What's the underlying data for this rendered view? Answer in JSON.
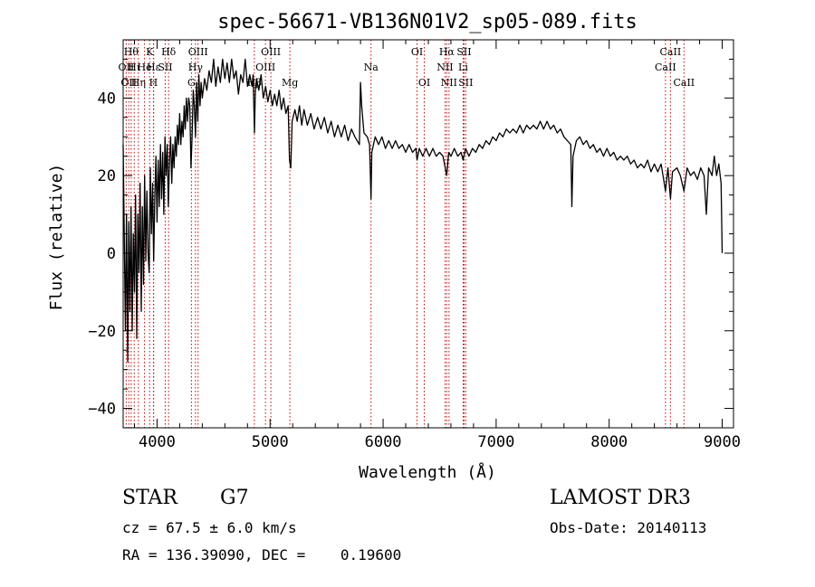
{
  "chart_data": {
    "type": "line",
    "title": "spec-56671-VB136N01V2_sp05-089.fits",
    "xlabel": "Wavelength (Å)",
    "ylabel": "Flux (relative)",
    "xlim": [
      3700,
      9100
    ],
    "ylim": [
      -45,
      55
    ],
    "xticks": [
      4000,
      5000,
      6000,
      7000,
      8000,
      9000
    ],
    "yticks": [
      -40,
      -20,
      0,
      20,
      40
    ],
    "series": [
      {
        "name": "spectrum",
        "points": [
          [
            3700,
            28
          ],
          [
            3710,
            5
          ],
          [
            3720,
            -20
          ],
          [
            3730,
            10
          ],
          [
            3740,
            -28
          ],
          [
            3750,
            8
          ],
          [
            3760,
            -15
          ],
          [
            3770,
            12
          ],
          [
            3780,
            -20
          ],
          [
            3790,
            5
          ],
          [
            3800,
            -10
          ],
          [
            3810,
            15
          ],
          [
            3820,
            -22
          ],
          [
            3830,
            10
          ],
          [
            3840,
            -5
          ],
          [
            3850,
            18
          ],
          [
            3860,
            -15
          ],
          [
            3870,
            12
          ],
          [
            3880,
            -8
          ],
          [
            3890,
            20
          ],
          [
            3900,
            -2
          ],
          [
            3910,
            16
          ],
          [
            3920,
            0
          ],
          [
            3930,
            -5
          ],
          [
            3940,
            22
          ],
          [
            3950,
            5
          ],
          [
            3960,
            18
          ],
          [
            3970,
            -2
          ],
          [
            3980,
            14
          ],
          [
            3990,
            25
          ],
          [
            4000,
            8
          ],
          [
            4010,
            24
          ],
          [
            4020,
            12
          ],
          [
            4030,
            28
          ],
          [
            4040,
            14
          ],
          [
            4050,
            26
          ],
          [
            4060,
            10
          ],
          [
            4070,
            30
          ],
          [
            4080,
            20
          ],
          [
            4090,
            28
          ],
          [
            4100,
            12
          ],
          [
            4110,
            24
          ],
          [
            4120,
            30
          ],
          [
            4130,
            18
          ],
          [
            4140,
            28
          ],
          [
            4150,
            22
          ],
          [
            4160,
            30
          ],
          [
            4170,
            25
          ],
          [
            4180,
            33
          ],
          [
            4190,
            28
          ],
          [
            4200,
            36
          ],
          [
            4210,
            28
          ],
          [
            4220,
            34
          ],
          [
            4230,
            30
          ],
          [
            4240,
            38
          ],
          [
            4250,
            32
          ],
          [
            4260,
            40
          ],
          [
            4270,
            34
          ],
          [
            4280,
            40
          ],
          [
            4290,
            38
          ],
          [
            4300,
            22
          ],
          [
            4310,
            30
          ],
          [
            4320,
            42
          ],
          [
            4330,
            38
          ],
          [
            4340,
            30
          ],
          [
            4350,
            44
          ],
          [
            4360,
            34
          ],
          [
            4370,
            46
          ],
          [
            4380,
            38
          ],
          [
            4390,
            44
          ],
          [
            4400,
            40
          ],
          [
            4420,
            45
          ],
          [
            4440,
            42
          ],
          [
            4460,
            47
          ],
          [
            4480,
            44
          ],
          [
            4500,
            50
          ],
          [
            4520,
            43
          ],
          [
            4540,
            48
          ],
          [
            4560,
            44
          ],
          [
            4580,
            50
          ],
          [
            4600,
            45
          ],
          [
            4620,
            49
          ],
          [
            4640,
            44
          ],
          [
            4660,
            50
          ],
          [
            4680,
            45
          ],
          [
            4700,
            47
          ],
          [
            4720,
            41
          ],
          [
            4740,
            46
          ],
          [
            4760,
            44
          ],
          [
            4780,
            50
          ],
          [
            4800,
            43
          ],
          [
            4820,
            46
          ],
          [
            4840,
            43
          ],
          [
            4850,
            46
          ],
          [
            4862,
            31
          ],
          [
            4870,
            42
          ],
          [
            4880,
            45
          ],
          [
            4900,
            42
          ],
          [
            4920,
            46
          ],
          [
            4940,
            40
          ],
          [
            4960,
            43
          ],
          [
            4980,
            39
          ],
          [
            5000,
            42
          ],
          [
            5020,
            38
          ],
          [
            5040,
            41
          ],
          [
            5060,
            38
          ],
          [
            5080,
            42
          ],
          [
            5100,
            37
          ],
          [
            5120,
            40
          ],
          [
            5140,
            36
          ],
          [
            5160,
            38
          ],
          [
            5172,
            24
          ],
          [
            5183,
            22
          ],
          [
            5195,
            34
          ],
          [
            5220,
            37
          ],
          [
            5240,
            34
          ],
          [
            5260,
            38
          ],
          [
            5280,
            33
          ],
          [
            5300,
            37
          ],
          [
            5330,
            33
          ],
          [
            5360,
            36
          ],
          [
            5390,
            32
          ],
          [
            5420,
            35
          ],
          [
            5450,
            32
          ],
          [
            5480,
            35
          ],
          [
            5510,
            31
          ],
          [
            5540,
            34
          ],
          [
            5570,
            30
          ],
          [
            5600,
            33
          ],
          [
            5630,
            30
          ],
          [
            5660,
            33
          ],
          [
            5690,
            29
          ],
          [
            5720,
            32
          ],
          [
            5750,
            30
          ],
          [
            5790,
            28
          ],
          [
            5800,
            44
          ],
          [
            5810,
            38
          ],
          [
            5830,
            31
          ],
          [
            5860,
            30
          ],
          [
            5880,
            28
          ],
          [
            5893,
            14
          ],
          [
            5900,
            26
          ],
          [
            5930,
            30
          ],
          [
            5960,
            28
          ],
          [
            5990,
            30
          ],
          [
            6020,
            27
          ],
          [
            6050,
            29
          ],
          [
            6080,
            27
          ],
          [
            6110,
            29
          ],
          [
            6140,
            27
          ],
          [
            6170,
            28
          ],
          [
            6200,
            26
          ],
          [
            6230,
            28
          ],
          [
            6260,
            26
          ],
          [
            6290,
            27
          ],
          [
            6300,
            24
          ],
          [
            6320,
            27
          ],
          [
            6350,
            25
          ],
          [
            6380,
            27
          ],
          [
            6410,
            25
          ],
          [
            6440,
            27
          ],
          [
            6470,
            25
          ],
          [
            6500,
            26
          ],
          [
            6530,
            25
          ],
          [
            6563,
            20
          ],
          [
            6580,
            26
          ],
          [
            6600,
            25
          ],
          [
            6630,
            27
          ],
          [
            6660,
            25
          ],
          [
            6690,
            26
          ],
          [
            6708,
            24
          ],
          [
            6730,
            27
          ],
          [
            6760,
            25
          ],
          [
            6790,
            27
          ],
          [
            6820,
            26
          ],
          [
            6850,
            28
          ],
          [
            6880,
            27
          ],
          [
            6910,
            29
          ],
          [
            6940,
            28
          ],
          [
            6970,
            30
          ],
          [
            7000,
            29
          ],
          [
            7030,
            31
          ],
          [
            7060,
            30
          ],
          [
            7090,
            32
          ],
          [
            7120,
            31
          ],
          [
            7150,
            32
          ],
          [
            7180,
            31
          ],
          [
            7210,
            33
          ],
          [
            7240,
            31
          ],
          [
            7270,
            33
          ],
          [
            7300,
            32
          ],
          [
            7330,
            33
          ],
          [
            7360,
            32
          ],
          [
            7390,
            34
          ],
          [
            7420,
            32
          ],
          [
            7450,
            34
          ],
          [
            7480,
            32
          ],
          [
            7510,
            33
          ],
          [
            7540,
            31
          ],
          [
            7570,
            32
          ],
          [
            7600,
            30
          ],
          [
            7630,
            29
          ],
          [
            7660,
            28
          ],
          [
            7670,
            12
          ],
          [
            7680,
            25
          ],
          [
            7710,
            29
          ],
          [
            7740,
            30
          ],
          [
            7770,
            28
          ],
          [
            7800,
            29
          ],
          [
            7830,
            27
          ],
          [
            7860,
            28
          ],
          [
            7890,
            26
          ],
          [
            7920,
            27
          ],
          [
            7950,
            25
          ],
          [
            7980,
            27
          ],
          [
            8010,
            25
          ],
          [
            8040,
            26
          ],
          [
            8070,
            24
          ],
          [
            8100,
            25
          ],
          [
            8130,
            24
          ],
          [
            8160,
            25
          ],
          [
            8190,
            23
          ],
          [
            8220,
            24
          ],
          [
            8250,
            22
          ],
          [
            8280,
            23
          ],
          [
            8310,
            22
          ],
          [
            8340,
            24
          ],
          [
            8370,
            21
          ],
          [
            8400,
            23
          ],
          [
            8430,
            21
          ],
          [
            8460,
            23
          ],
          [
            8498,
            16
          ],
          [
            8520,
            22
          ],
          [
            8542,
            14
          ],
          [
            8560,
            21
          ],
          [
            8600,
            22
          ],
          [
            8630,
            20
          ],
          [
            8662,
            16
          ],
          [
            8690,
            22
          ],
          [
            8720,
            20
          ],
          [
            8750,
            21
          ],
          [
            8780,
            19
          ],
          [
            8810,
            22
          ],
          [
            8840,
            20
          ],
          [
            8860,
            10
          ],
          [
            8880,
            22
          ],
          [
            8910,
            20
          ],
          [
            8930,
            25
          ],
          [
            8950,
            20
          ],
          [
            8970,
            23
          ],
          [
            8990,
            18
          ],
          [
            9000,
            0
          ]
        ]
      }
    ],
    "lines": [
      {
        "wave": 3727,
        "label": "OII",
        "row": 2
      },
      {
        "wave": 3750,
        "label": "OII",
        "row": 3
      },
      {
        "wave": 3771,
        "label": "Hθ",
        "row": 1
      },
      {
        "wave": 3798,
        "label": "Hι",
        "row": 2
      },
      {
        "wave": 3835,
        "label": "Hη",
        "row": 3
      },
      {
        "wave": 3889,
        "label": "He",
        "row": 2
      },
      {
        "wave": 3934,
        "label": "K",
        "row": 1
      },
      {
        "wave": 3968,
        "label": "H",
        "row": 3
      },
      {
        "wave": 3970,
        "label": "Hε",
        "row": 2
      },
      {
        "wave": 4072,
        "label": "SII",
        "row": 2
      },
      {
        "wave": 4102,
        "label": "Hδ",
        "row": 1
      },
      {
        "wave": 4304,
        "label": "G",
        "row": 3
      },
      {
        "wave": 4340,
        "label": "Hγ",
        "row": 2
      },
      {
        "wave": 4363,
        "label": "OIII",
        "row": 1
      },
      {
        "wave": 4861,
        "label": "Hβ",
        "row": 3
      },
      {
        "wave": 4959,
        "label": "OIII",
        "row": 2
      },
      {
        "wave": 5007,
        "label": "OIII",
        "row": 1
      },
      {
        "wave": 5175,
        "label": "Mg",
        "row": 3
      },
      {
        "wave": 5893,
        "label": "Na",
        "row": 2
      },
      {
        "wave": 6300,
        "label": "OI",
        "row": 1
      },
      {
        "wave": 6364,
        "label": "OI",
        "row": 3
      },
      {
        "wave": 6548,
        "label": "NII",
        "row": 2
      },
      {
        "wave": 6563,
        "label": "Hα",
        "row": 1
      },
      {
        "wave": 6583,
        "label": "NII",
        "row": 3
      },
      {
        "wave": 6708,
        "label": "Li",
        "row": 2
      },
      {
        "wave": 6716,
        "label": "SII",
        "row": 1
      },
      {
        "wave": 6731,
        "label": "SII",
        "row": 3
      },
      {
        "wave": 8498,
        "label": "CaII",
        "row": 2
      },
      {
        "wave": 8542,
        "label": "CaII",
        "row": 1
      },
      {
        "wave": 8662,
        "label": "CaII",
        "row": 3
      }
    ]
  },
  "info": {
    "object_class": "STAR",
    "subclass": "G7",
    "survey": "LAMOST DR3",
    "redshift": "cz = 67.5 ± 6.0 km/s",
    "obs_date": "Obs-Date: 20140113",
    "coords": "RA = 136.39090, DEC =    0.19600"
  },
  "colors": {
    "spectrum": "#000000",
    "line_marker": "#cc0000",
    "axis": "#000000"
  }
}
